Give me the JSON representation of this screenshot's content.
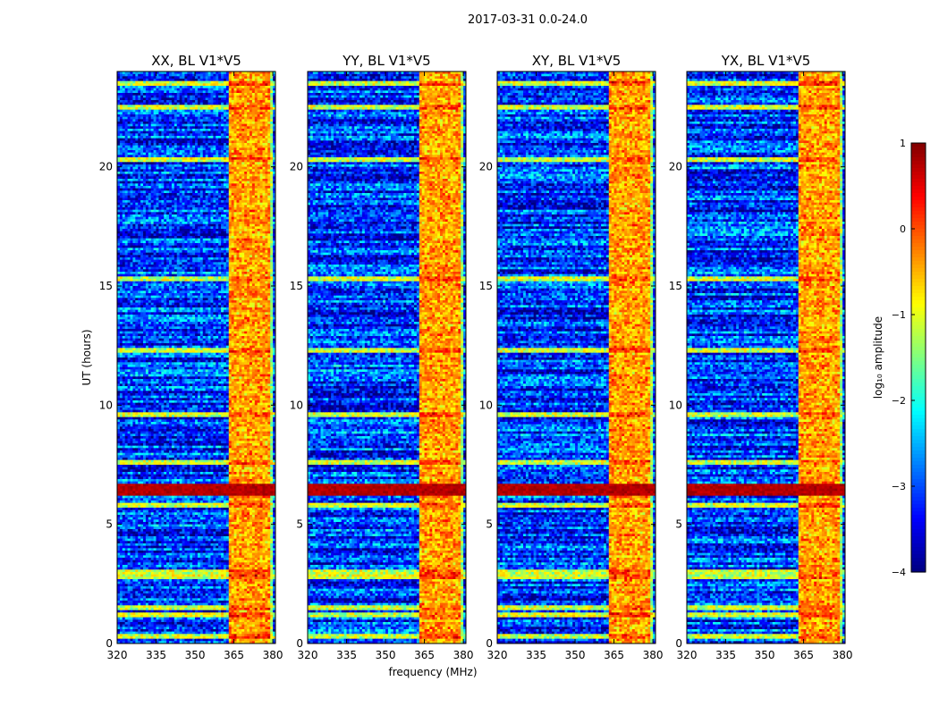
{
  "chart_data": {
    "type": "heatmap",
    "title": "2017-03-31 0.0-24.0",
    "xlabel": "frequency (MHz)",
    "ylabel": "UT (hours)",
    "xlim": [
      320,
      381
    ],
    "ylim": [
      0,
      24
    ],
    "xticks": [
      "320",
      "335",
      "350",
      "365",
      "380"
    ],
    "yticks": [
      "0",
      "5",
      "10",
      "15",
      "20"
    ],
    "panels": [
      {
        "title": "XX, BL V1*V5",
        "pol": "XX"
      },
      {
        "title": "YY, BL V1*V5",
        "pol": "YY"
      },
      {
        "title": "XY, BL V1*V5",
        "pol": "XY"
      },
      {
        "title": "YX, BL V1*V5",
        "pol": "YX"
      }
    ],
    "colorbar": {
      "label": "log₁₀ amplitude",
      "range": [
        -4,
        1
      ],
      "ticks": [
        "1",
        "0",
        "−1",
        "−2",
        "−3",
        "−4"
      ],
      "colormap": "jet"
    },
    "features": {
      "rfi_band_mhz": [
        363,
        380
      ],
      "rfi_channels_mhz": [
        365,
        369,
        373,
        377
      ],
      "strong_rfi_hours": [
        6.2,
        6.7
      ],
      "bright_horizontal_hours": [
        0.3,
        1.2,
        1.5,
        2.8,
        3.0,
        5.8,
        7.6,
        9.6,
        12.3,
        15.3,
        20.3,
        22.5,
        23.5
      ]
    }
  }
}
